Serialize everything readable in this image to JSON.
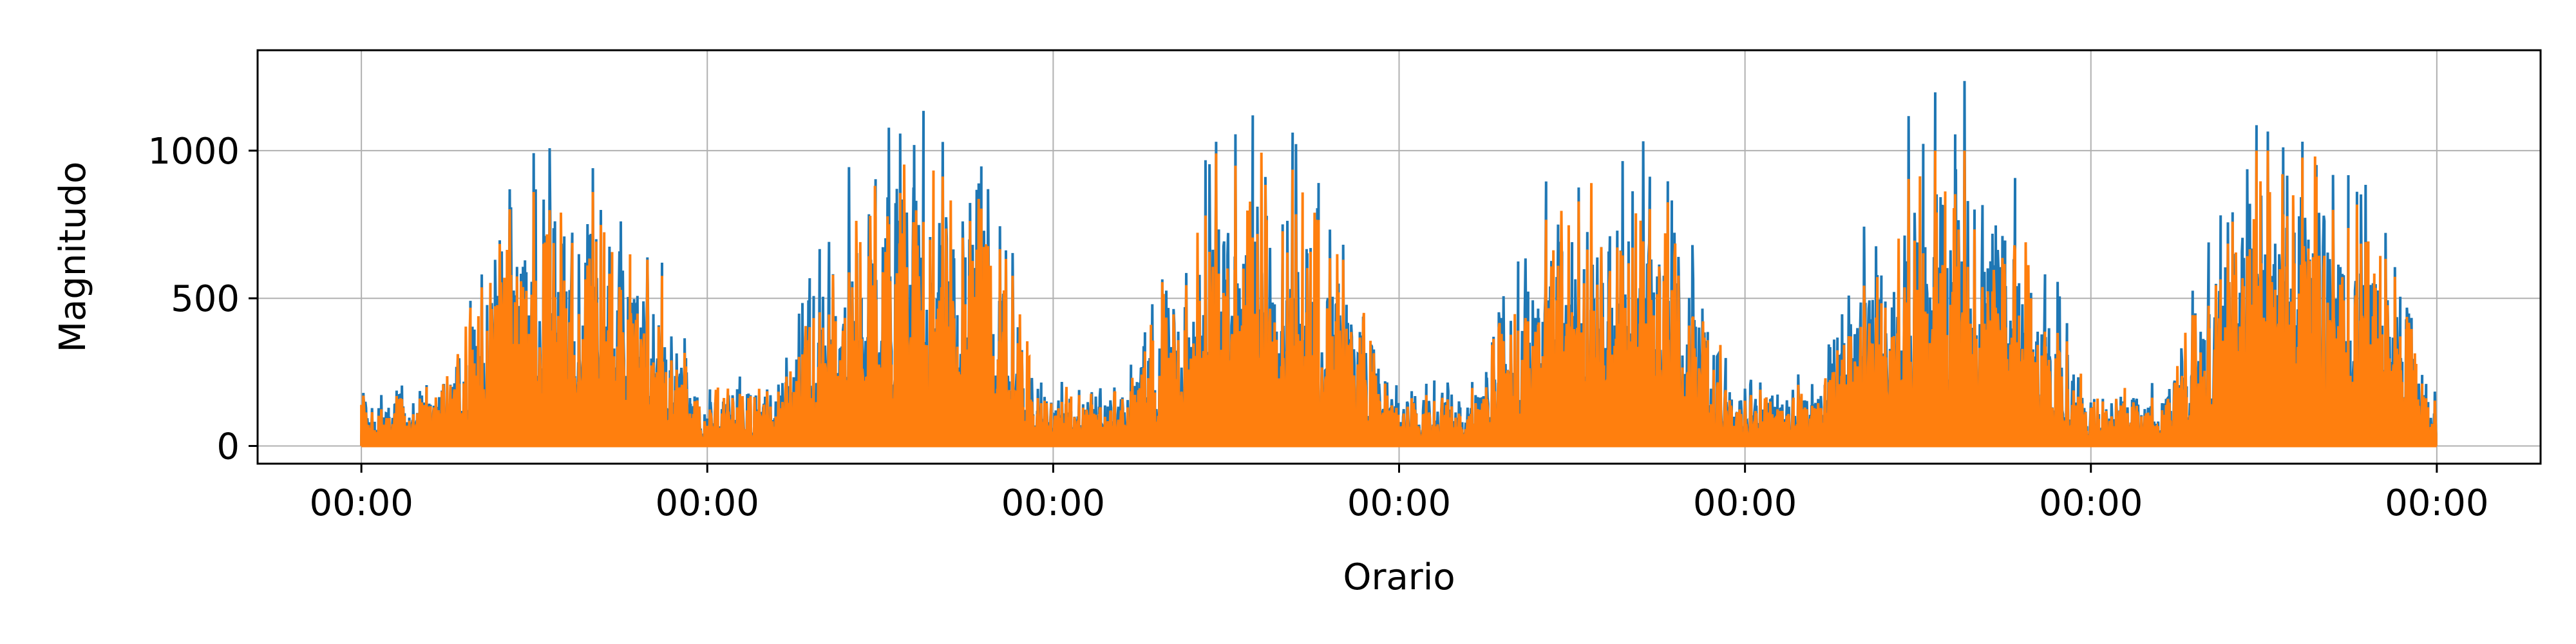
{
  "chart_data": {
    "type": "line",
    "title": "",
    "xlabel": "Orario",
    "ylabel": "Magnitudo",
    "x_tick_labels": [
      "00:00",
      "00:00",
      "00:00",
      "00:00",
      "00:00",
      "00:00",
      "00:00"
    ],
    "y_ticks": [
      0,
      500,
      1000
    ],
    "y_tick_labels": [
      "0",
      "500",
      "1000"
    ],
    "xlim_days": [
      -0.3,
      6.3
    ],
    "ylim": [
      -60,
      1340
    ],
    "grid": true,
    "legend": "none",
    "colors": {
      "series_1": "#1f77b4",
      "series_2": "#ff7f0e"
    },
    "series": [
      {
        "color": "#1f77b4",
        "description_values": "daily peaks (in Magnitudo) for days 1-6",
        "daily_peaks": [
          1100,
          1270,
          1200,
          1120,
          1250,
          1210
        ]
      },
      {
        "color": "#ff7f0e",
        "daily_peaks": [
          860,
          990,
          1000,
          930,
          1000,
          1000
        ]
      }
    ]
  }
}
